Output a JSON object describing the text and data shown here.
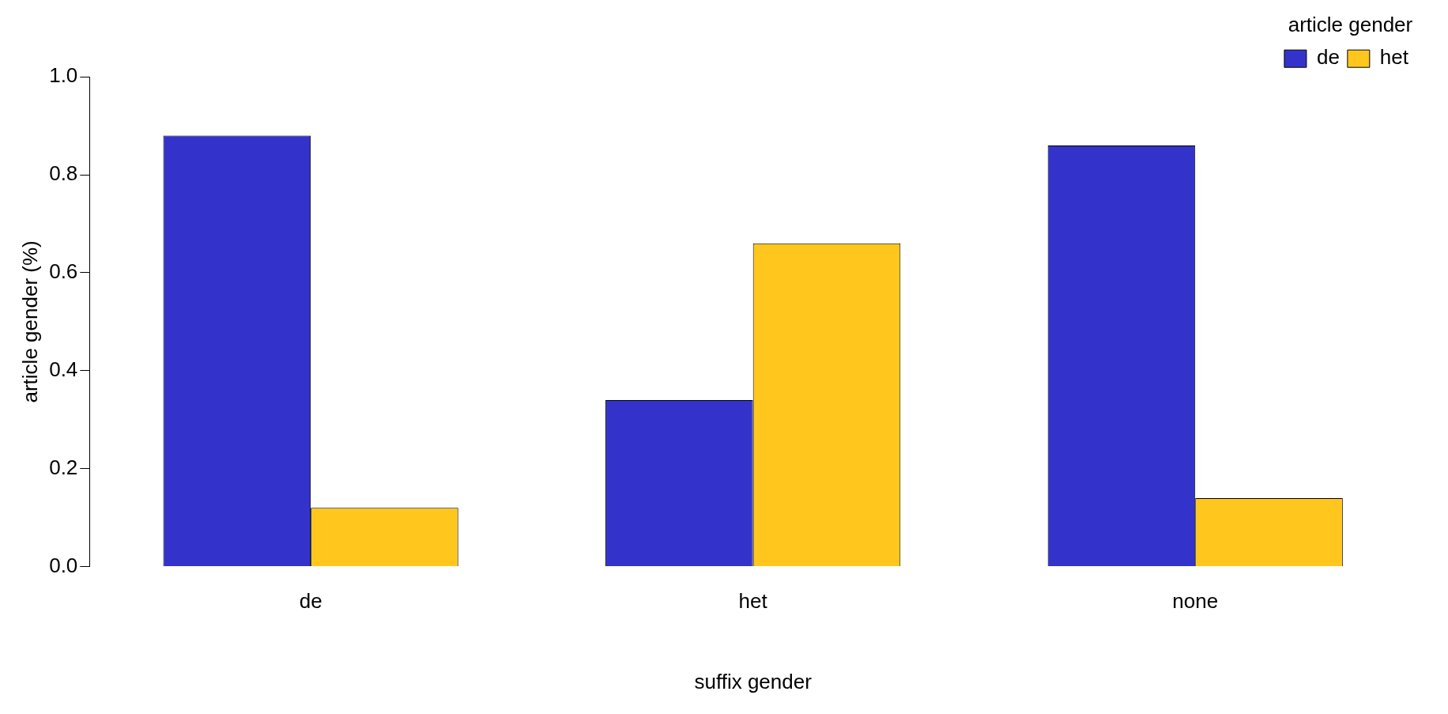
{
  "chart_data": {
    "type": "bar",
    "xlabel": "suffix gender",
    "ylabel": "article gender (%)",
    "legend_title": "article gender",
    "categories": [
      "de",
      "het",
      "none"
    ],
    "series": [
      {
        "name": "de",
        "color": "#3333cc",
        "values": [
          0.88,
          0.34,
          0.86
        ]
      },
      {
        "name": "het",
        "color": "#ffc61e",
        "values": [
          0.12,
          0.66,
          0.14
        ]
      }
    ],
    "ylim": [
      0,
      1
    ],
    "yticks": [
      {
        "value": 0,
        "label": "0.0"
      },
      {
        "value": 0.2,
        "label": "0.2"
      },
      {
        "value": 0.4,
        "label": "0.4"
      },
      {
        "value": 0.6,
        "label": "0.6"
      },
      {
        "value": 0.8,
        "label": "0.8"
      },
      {
        "value": 1,
        "label": "1.0"
      }
    ],
    "grid": false,
    "legend": "top right"
  }
}
